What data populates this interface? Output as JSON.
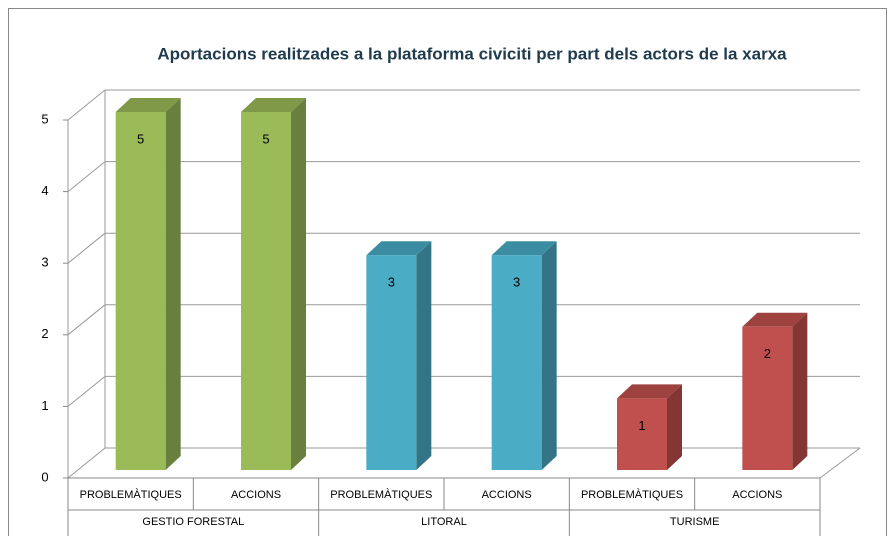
{
  "chart_data": {
    "type": "bar3d",
    "title": "Aportacions realitzades a la plataforma civiciti per part dels actors de la xarxa",
    "categories": [
      "PROBLEMÀTIQUES",
      "ACCIONS",
      "PROBLEMÀTIQUES",
      "ACCIONS",
      "PROBLEMÀTIQUES",
      "ACCIONS"
    ],
    "groups": [
      "GESTIO FORESTAL",
      "LITORAL",
      "TURISME"
    ],
    "values": [
      5,
      5,
      3,
      3,
      1,
      2
    ],
    "colors": [
      "#9bbb59",
      "#9bbb59",
      "#4bacc6",
      "#4bacc6",
      "#c0504d",
      "#c0504d"
    ],
    "ylim": [
      0,
      5
    ],
    "yticks": [
      0,
      1,
      2,
      3,
      4,
      5
    ],
    "grid": true,
    "data_labels": true
  }
}
